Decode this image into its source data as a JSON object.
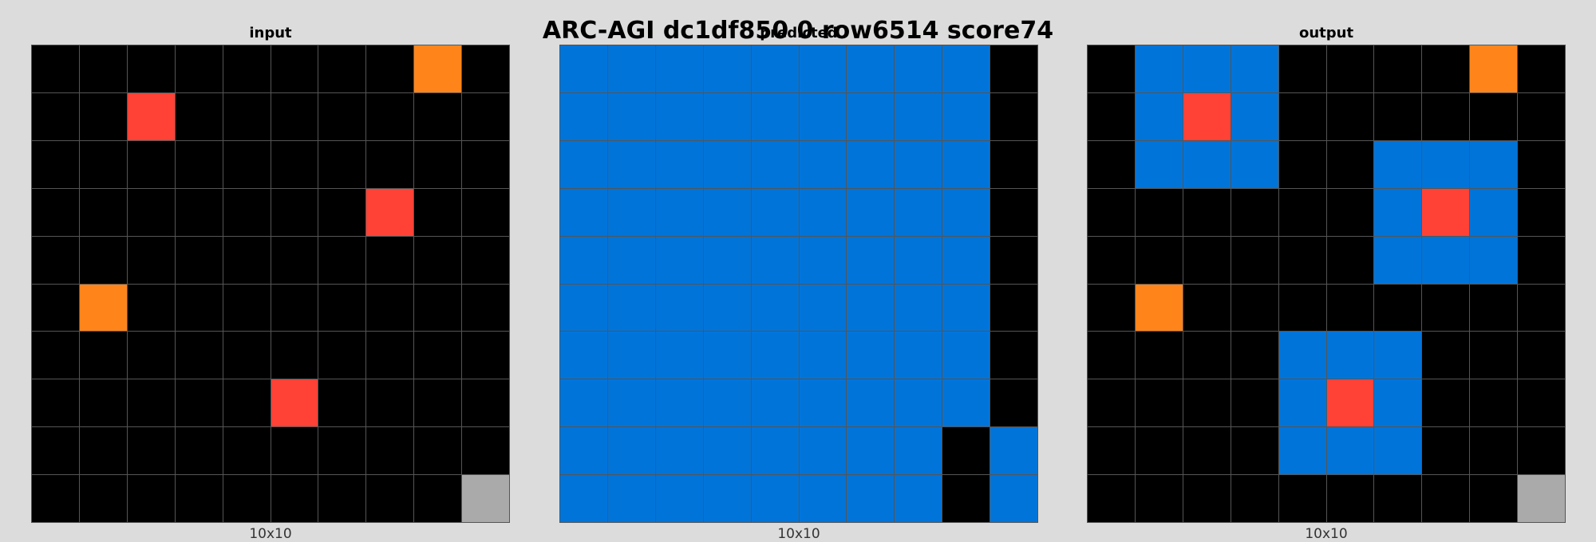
{
  "title": "ARC-AGI dc1df850 0 row6514 score74",
  "palette": {
    "0": "#000000",
    "1": "#0074d9",
    "2": "#ff4136",
    "5": "#aaaaaa",
    "7": "#ff851b"
  },
  "panels": [
    {
      "label": "input",
      "size": "10x10",
      "grid": [
        [
          0,
          0,
          0,
          0,
          0,
          0,
          0,
          0,
          7,
          0
        ],
        [
          0,
          0,
          2,
          0,
          0,
          0,
          0,
          0,
          0,
          0
        ],
        [
          0,
          0,
          0,
          0,
          0,
          0,
          0,
          0,
          0,
          0
        ],
        [
          0,
          0,
          0,
          0,
          0,
          0,
          0,
          2,
          0,
          0
        ],
        [
          0,
          0,
          0,
          0,
          0,
          0,
          0,
          0,
          0,
          0
        ],
        [
          0,
          7,
          0,
          0,
          0,
          0,
          0,
          0,
          0,
          0
        ],
        [
          0,
          0,
          0,
          0,
          0,
          0,
          0,
          0,
          0,
          0
        ],
        [
          0,
          0,
          0,
          0,
          0,
          2,
          0,
          0,
          0,
          0
        ],
        [
          0,
          0,
          0,
          0,
          0,
          0,
          0,
          0,
          0,
          0
        ],
        [
          0,
          0,
          0,
          0,
          0,
          0,
          0,
          0,
          0,
          5
        ]
      ]
    },
    {
      "label": "predicted",
      "size": "10x10",
      "grid": [
        [
          1,
          1,
          1,
          1,
          1,
          1,
          1,
          1,
          1,
          0
        ],
        [
          1,
          1,
          1,
          1,
          1,
          1,
          1,
          1,
          1,
          0
        ],
        [
          1,
          1,
          1,
          1,
          1,
          1,
          1,
          1,
          1,
          0
        ],
        [
          1,
          1,
          1,
          1,
          1,
          1,
          1,
          1,
          1,
          0
        ],
        [
          1,
          1,
          1,
          1,
          1,
          1,
          1,
          1,
          1,
          0
        ],
        [
          1,
          1,
          1,
          1,
          1,
          1,
          1,
          1,
          1,
          0
        ],
        [
          1,
          1,
          1,
          1,
          1,
          1,
          1,
          1,
          1,
          0
        ],
        [
          1,
          1,
          1,
          1,
          1,
          1,
          1,
          1,
          1,
          0
        ],
        [
          1,
          1,
          1,
          1,
          1,
          1,
          1,
          1,
          0,
          1
        ],
        [
          1,
          1,
          1,
          1,
          1,
          1,
          1,
          1,
          0,
          1
        ]
      ]
    },
    {
      "label": "output",
      "size": "10x10",
      "grid": [
        [
          0,
          1,
          1,
          1,
          0,
          0,
          0,
          0,
          7,
          0
        ],
        [
          0,
          1,
          2,
          1,
          0,
          0,
          0,
          0,
          0,
          0
        ],
        [
          0,
          1,
          1,
          1,
          0,
          0,
          1,
          1,
          1,
          0
        ],
        [
          0,
          0,
          0,
          0,
          0,
          0,
          1,
          2,
          1,
          0
        ],
        [
          0,
          0,
          0,
          0,
          0,
          0,
          1,
          1,
          1,
          0
        ],
        [
          0,
          7,
          0,
          0,
          0,
          0,
          0,
          0,
          0,
          0
        ],
        [
          0,
          0,
          0,
          0,
          1,
          1,
          1,
          0,
          0,
          0
        ],
        [
          0,
          0,
          0,
          0,
          1,
          2,
          1,
          0,
          0,
          0
        ],
        [
          0,
          0,
          0,
          0,
          1,
          1,
          1,
          0,
          0,
          0
        ],
        [
          0,
          0,
          0,
          0,
          0,
          0,
          0,
          0,
          0,
          5
        ]
      ]
    }
  ]
}
